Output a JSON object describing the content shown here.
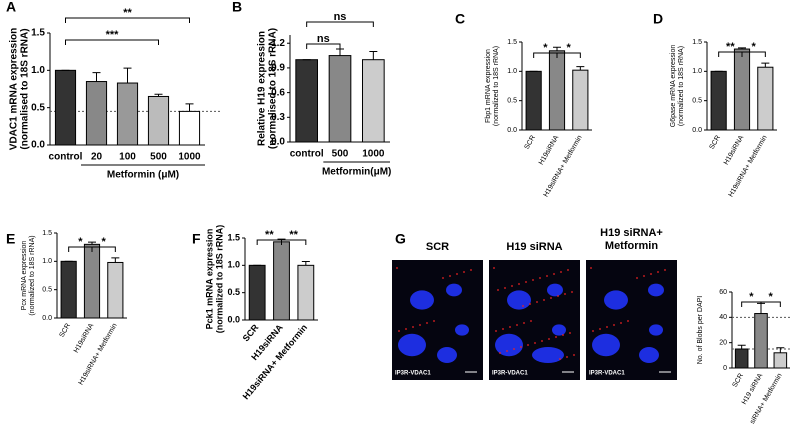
{
  "chart_data": [
    {
      "panel": "A",
      "type": "bar",
      "ylabel": [
        "VDAC1 mRNA expression",
        "(normalised to 18S rRNA)"
      ],
      "xlabel": "Metformin (μM)",
      "categories": [
        "control",
        "20",
        "100",
        "500",
        "1000"
      ],
      "values": [
        1.0,
        0.85,
        0.83,
        0.65,
        0.45
      ],
      "errors": [
        0,
        0.12,
        0.2,
        0.03,
        0.1
      ],
      "colors": [
        "#333333",
        "#888888",
        "#999999",
        "#bbbbbb",
        "#ffffff"
      ],
      "ylim": [
        0,
        1.5
      ],
      "yticks": [
        {
          "value": 0,
          "label": "0.0"
        },
        {
          "value": 0.5,
          "label": "0.5"
        },
        {
          "value": 1,
          "label": "1.0"
        },
        {
          "value": 1.5,
          "label": "1.5"
        }
      ],
      "reference_lines": [
        0.45
      ],
      "annotations": [
        "**",
        "***"
      ]
    },
    {
      "panel": "B",
      "type": "bar",
      "ylabel": [
        "Relative H19 expression",
        "(normalised to 18S rRNA)"
      ],
      "xlabel": "Metformin(μM)",
      "categories": [
        "control",
        "500",
        "1000"
      ],
      "values": [
        1.0,
        1.05,
        1.0
      ],
      "errors": [
        0,
        0.08,
        0.1
      ],
      "colors": [
        "#333333",
        "#888888",
        "#cccccc"
      ],
      "ylim": [
        0,
        1.3
      ],
      "yticks": [
        {
          "value": 0,
          "label": "0.0"
        },
        {
          "value": 0.3,
          "label": "0.3"
        },
        {
          "value": 0.6,
          "label": "0.6"
        },
        {
          "value": 0.9,
          "label": "0.9"
        },
        {
          "value": 1.2,
          "label": "1.2"
        }
      ],
      "annotations": [
        "ns",
        "ns"
      ]
    },
    {
      "panel": "C",
      "type": "bar",
      "ylabel": [
        "Fbp1 mRNA expression",
        "(normalized to 18S rRNA)"
      ],
      "categories": [
        "SCR",
        "H19siRNA",
        "H19siRNA+ Metformin"
      ],
      "values": [
        1.0,
        1.35,
        1.02
      ],
      "errors": [
        0,
        0.06,
        0.06
      ],
      "colors": [
        "#333333",
        "#888888",
        "#cccccc"
      ],
      "ylim": [
        0,
        1.5
      ],
      "yticks": [
        {
          "value": 0,
          "label": "0.0"
        },
        {
          "value": 0.5,
          "label": "0.5"
        },
        {
          "value": 1,
          "label": "1.0"
        },
        {
          "value": 1.5,
          "label": "1.5"
        }
      ],
      "annotations": [
        "*",
        "*"
      ]
    },
    {
      "panel": "D",
      "type": "bar",
      "ylabel": [
        "G6pase mRNA expression",
        "(normalized to 18S rRNA)"
      ],
      "categories": [
        "SCR",
        "H19siRNA",
        "H19siRNA+ Metformin"
      ],
      "values": [
        1.0,
        1.38,
        1.07
      ],
      "errors": [
        0,
        0.02,
        0.07
      ],
      "colors": [
        "#333333",
        "#888888",
        "#cccccc"
      ],
      "ylim": [
        0,
        1.5
      ],
      "yticks": [
        {
          "value": 0,
          "label": "0.0"
        },
        {
          "value": 0.5,
          "label": "0.5"
        },
        {
          "value": 1,
          "label": "1.0"
        },
        {
          "value": 1.5,
          "label": "1.5"
        }
      ],
      "annotations": [
        "**",
        "*"
      ]
    },
    {
      "panel": "E",
      "type": "bar",
      "ylabel": [
        "Pcx mRNA expression",
        "(normalized to 18S rRNA)"
      ],
      "categories": [
        "SCR",
        "H19siRNA",
        "H19siRNA+ Metformin"
      ],
      "values": [
        1.0,
        1.3,
        0.98
      ],
      "errors": [
        0,
        0.04,
        0.08
      ],
      "colors": [
        "#333333",
        "#888888",
        "#cccccc"
      ],
      "ylim": [
        0,
        1.5
      ],
      "yticks": [
        {
          "value": 0,
          "label": "0.0"
        },
        {
          "value": 0.5,
          "label": "0.5"
        },
        {
          "value": 1,
          "label": "1.0"
        },
        {
          "value": 1.5,
          "label": "1.5"
        }
      ],
      "annotations": [
        "*",
        "*"
      ]
    },
    {
      "panel": "F",
      "type": "bar",
      "ylabel": [
        "Pck1 mRNA expression",
        "(normalized to 18S rRNA)"
      ],
      "categories": [
        "SCR",
        "H19siRNA",
        "H19siRNA+ Metformin"
      ],
      "values": [
        1.0,
        1.43,
        1.0
      ],
      "errors": [
        0,
        0.05,
        0.07
      ],
      "colors": [
        "#333333",
        "#888888",
        "#cccccc"
      ],
      "ylim": [
        0,
        1.5
      ],
      "yticks": [
        {
          "value": 0,
          "label": "0.0"
        },
        {
          "value": 0.5,
          "label": "0.5"
        },
        {
          "value": 1,
          "label": "1.0"
        },
        {
          "value": 1.5,
          "label": "1.5"
        }
      ],
      "annotations": [
        "**",
        "**"
      ]
    },
    {
      "panel": "G",
      "type": "bar",
      "ylabel": [
        "No. of Blobs per DAPI"
      ],
      "categories": [
        "SCR",
        "H19 siRNA",
        "H19 siRNA+ Metformin"
      ],
      "values": [
        15,
        43,
        12
      ],
      "errors": [
        3,
        8,
        4
      ],
      "colors": [
        "#333333",
        "#888888",
        "#cccccc"
      ],
      "ylim": [
        0,
        60
      ],
      "yticks": [
        0,
        20,
        40,
        60
      ],
      "reference_lines": [
        40,
        15
      ],
      "annotations": [
        "*",
        "*"
      ],
      "images": [
        {
          "title": "SCR",
          "caption": "IP3R-VDAC1"
        },
        {
          "title": "H19 siRNA",
          "caption": "IP3R-VDAC1"
        },
        {
          "title": "H19 siRNA+ Metformin",
          "caption": "IP3R-VDAC1"
        }
      ]
    }
  ]
}
